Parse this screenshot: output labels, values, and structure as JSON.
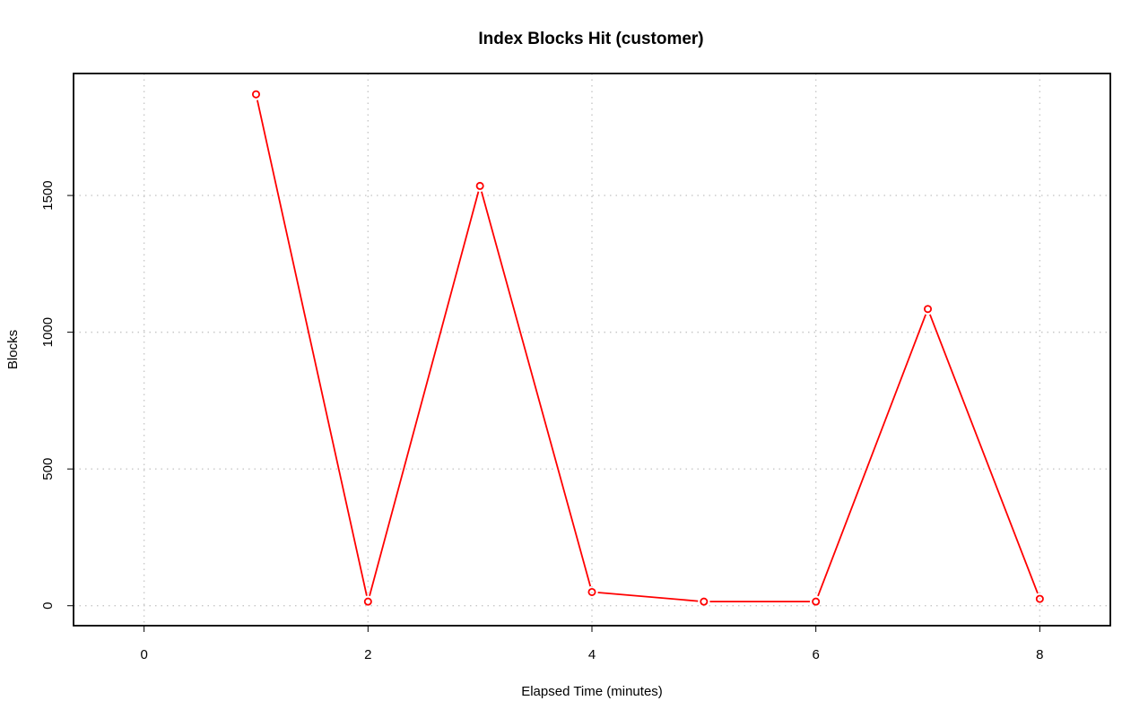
{
  "chart_data": {
    "type": "line",
    "title": "Index Blocks Hit (customer)",
    "xlabel": "Elapsed Time (minutes)",
    "ylabel": "Blocks",
    "xlim": [
      -0.63,
      8.63
    ],
    "ylim": [
      -73,
      1946
    ],
    "x_ticks": [
      0,
      2,
      4,
      6,
      8
    ],
    "y_ticks": [
      0,
      500,
      1000,
      1500
    ],
    "grid": true,
    "series": [
      {
        "color": "#ff0000",
        "points": [
          {
            "x": 1,
            "y": 1870
          },
          {
            "x": 2,
            "y": 15
          },
          {
            "x": 3,
            "y": 1535
          },
          {
            "x": 4,
            "y": 50
          },
          {
            "x": 5,
            "y": 15
          },
          {
            "x": 6,
            "y": 15
          },
          {
            "x": 7,
            "y": 1085
          },
          {
            "x": 8,
            "y": 25
          }
        ]
      }
    ]
  }
}
